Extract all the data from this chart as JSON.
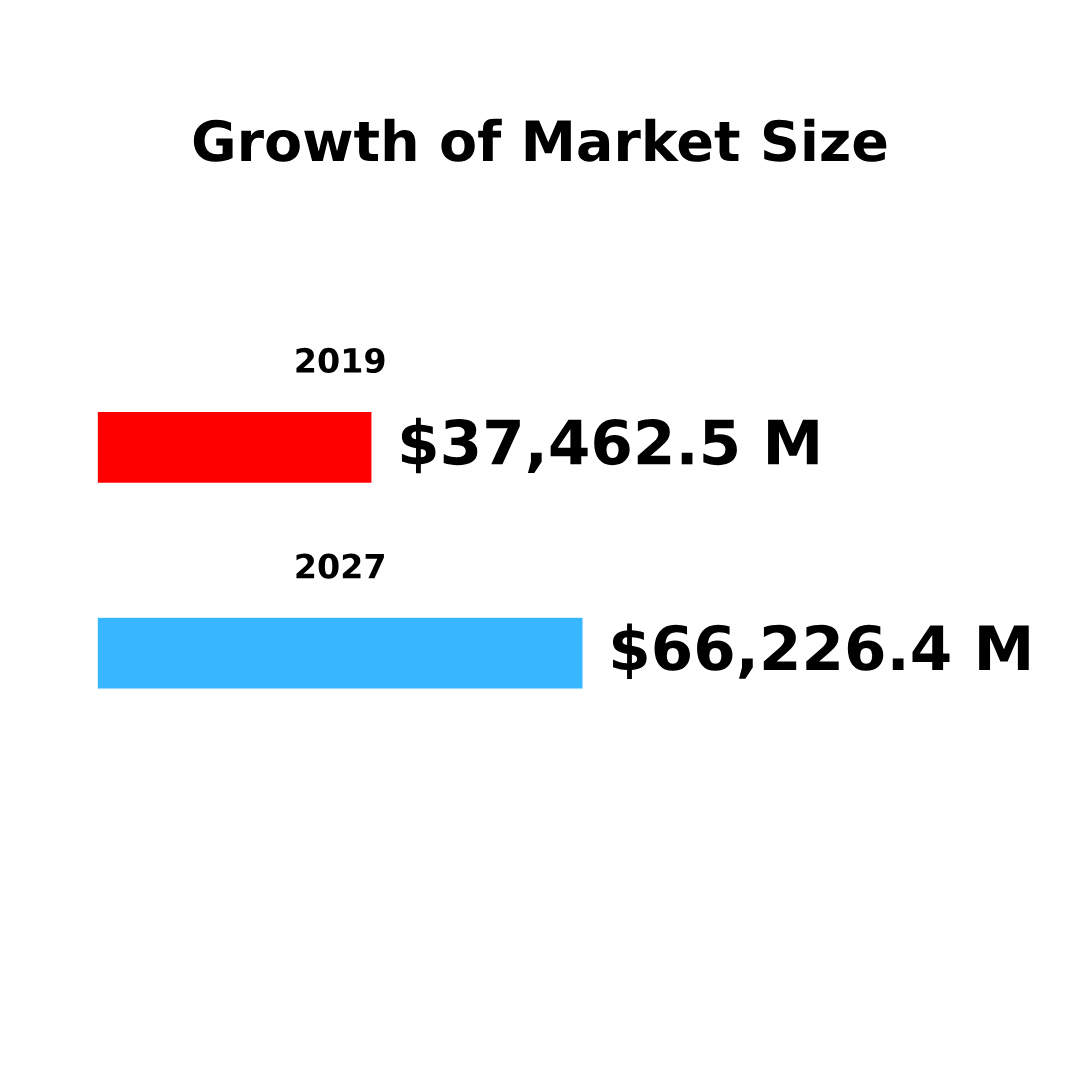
{
  "chart_data": {
    "type": "bar",
    "orientation": "horizontal",
    "title": "Growth of Market Size",
    "categories": [
      "2019",
      "2027"
    ],
    "values": [
      37462.5,
      66226.4
    ],
    "colors": [
      "#ff0000",
      "#38b6ff"
    ],
    "value_labels": [
      "$37,462.5 M",
      "$66,226.4 M"
    ]
  }
}
